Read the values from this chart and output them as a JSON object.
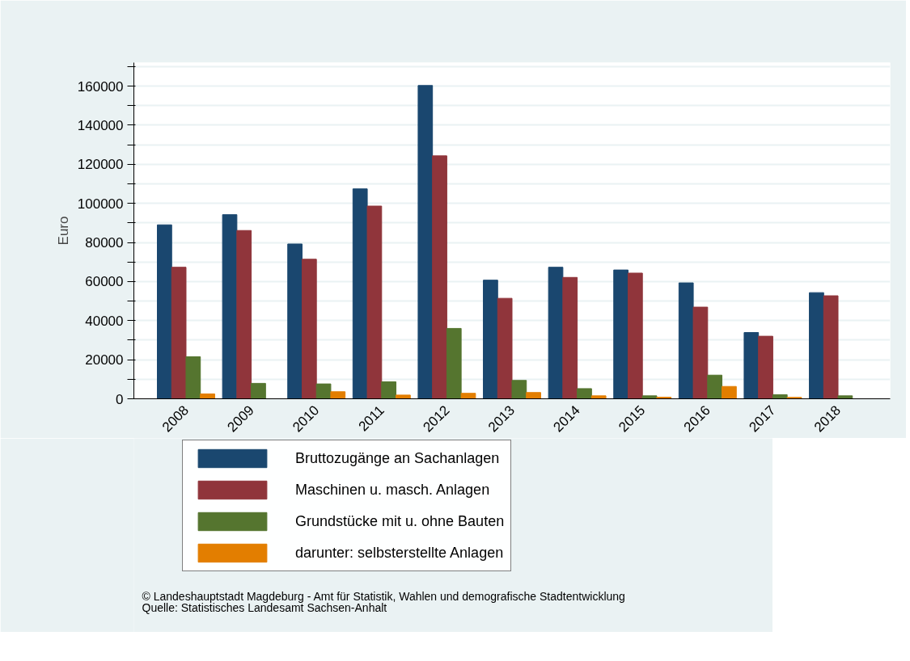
{
  "chart_data": {
    "type": "bar",
    "ylabel": "Euro",
    "categories": [
      "2008",
      "2009",
      "2010",
      "2011",
      "2012",
      "2013",
      "2014",
      "2015",
      "2016",
      "2017",
      "2018"
    ],
    "series": [
      {
        "name": "Bruttozugänge an Sachanlagen",
        "color": "#1a476f",
        "values": [
          89000,
          94200,
          79200,
          107400,
          160300,
          60700,
          67300,
          65900,
          59300,
          33900,
          54300
        ]
      },
      {
        "name": "Maschinen u. masch. Anlagen",
        "color": "#90353b",
        "values": [
          67300,
          86100,
          71400,
          98600,
          124300,
          51400,
          62100,
          64300,
          46900,
          32000,
          52700
        ]
      },
      {
        "name": "Grundstücke mit u. ohne Bauten",
        "color": "#55752f",
        "values": [
          21500,
          7900,
          7600,
          8700,
          36000,
          9400,
          5200,
          1500,
          12100,
          2100,
          1500
        ]
      },
      {
        "name": "darunter: selbsterstellte Anlagen",
        "color": "#e37e00",
        "values": [
          2500,
          null,
          3600,
          1900,
          2800,
          3200,
          1500,
          800,
          6300,
          700,
          null
        ]
      }
    ],
    "ylim": [
      0,
      172000
    ],
    "yticks": [
      0,
      {
        "value": 10000,
        "label": null
      },
      20000,
      {
        "value": 30000,
        "label": null
      },
      40000,
      {
        "value": 50000,
        "label": null
      },
      60000,
      {
        "value": 70000,
        "label": null
      },
      80000,
      {
        "value": 90000,
        "label": null
      },
      100000,
      {
        "value": 110000,
        "label": null
      },
      120000,
      {
        "value": 130000,
        "label": null
      },
      140000,
      {
        "value": 150000,
        "label": null
      },
      160000,
      {
        "value": 170000,
        "label": null
      }
    ],
    "grid": "y",
    "legend": "bottom",
    "annotations": [
      "©  Landeshauptstadt Magdeburg - Amt für Statistik, Wahlen und demografische Stadtentwicklung",
      "Quelle: Statistisches Landesamt Sachsen-Anhalt"
    ]
  }
}
